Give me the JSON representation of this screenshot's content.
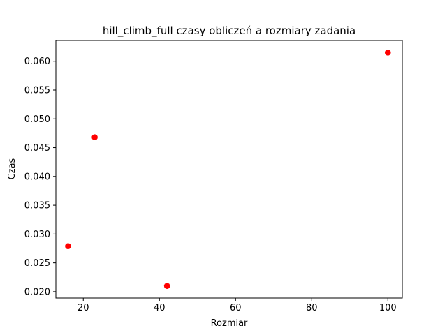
{
  "chart_data": {
    "type": "scatter",
    "title": "hill_climb_full czasy obliczeń a rozmiary zadania",
    "xlabel": "Rozmiar",
    "ylabel": "Czas",
    "xlim": [
      12.8,
      103.8
    ],
    "ylim": [
      0.0189,
      0.0636
    ],
    "xticks": [
      20,
      40,
      60,
      80,
      100
    ],
    "xtick_labels": [
      "20",
      "40",
      "60",
      "80",
      "100"
    ],
    "yticks": [
      0.02,
      0.025,
      0.03,
      0.035,
      0.04,
      0.045,
      0.05,
      0.055,
      0.06
    ],
    "ytick_labels": [
      "0.020",
      "0.025",
      "0.030",
      "0.035",
      "0.040",
      "0.045",
      "0.050",
      "0.055",
      "0.060"
    ],
    "grid": false,
    "legend": null,
    "series": [
      {
        "color": "#ff0000",
        "marker": "circle",
        "points": [
          {
            "x": 16,
            "y": 0.0279
          },
          {
            "x": 23,
            "y": 0.0468
          },
          {
            "x": 42,
            "y": 0.021
          },
          {
            "x": 100,
            "y": 0.0615
          }
        ]
      }
    ]
  }
}
